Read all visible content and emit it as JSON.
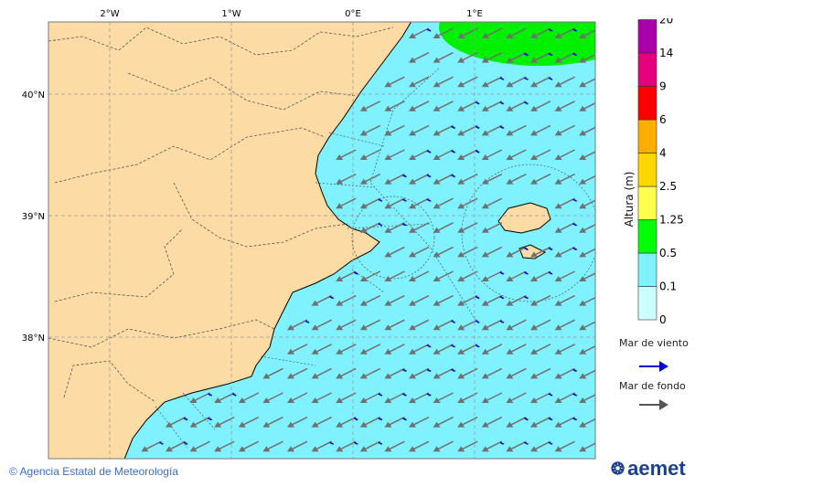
{
  "map": {
    "lon_ticks": [
      "2°W",
      "1°W",
      "0°E",
      "1°E"
    ],
    "lat_ticks": [
      "40°N",
      "39°N",
      "38°N"
    ],
    "colors": {
      "land": "#fcdca4",
      "sea_low": "#80f2ff",
      "sea_mid": "#00f000",
      "swell_arrow": "#707070",
      "wind_sea_arrow": "#0000e0"
    }
  },
  "legend": {
    "title": "Altura (m)",
    "levels": [
      "0",
      "0.1",
      "0.5",
      "1.25",
      "2.5",
      "4",
      "6",
      "9",
      "14",
      "20"
    ],
    "colors": [
      "#ccffff",
      "#80f2ff",
      "#00ff00",
      "#ffff4d",
      "#ffd700",
      "#ffad00",
      "#ff0000",
      "#e6007e",
      "#aa00aa"
    ],
    "wind_sea_label": "Mar de viento",
    "swell_label": "Mar de fondo"
  },
  "footer": {
    "copyright": "Agencia Estatal de Meteorología",
    "logo_text": "aemet"
  }
}
